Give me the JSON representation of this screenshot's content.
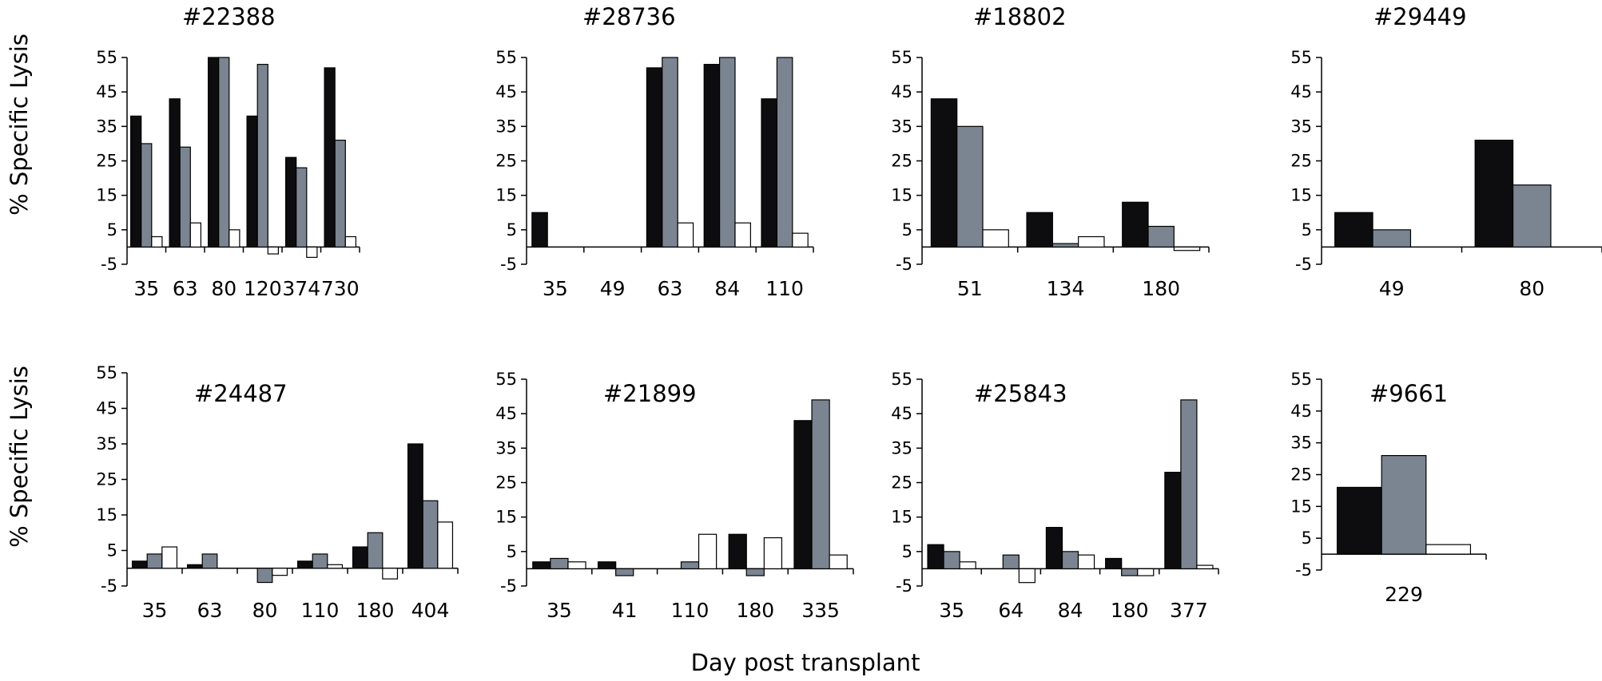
{
  "figure": {
    "y_axis_label": "% Specific Lysis",
    "x_axis_label": "Day post transplant"
  },
  "colors": {
    "series_1": "#0d0d0f",
    "series_2": "#7b8591",
    "series_3": "#ffffff",
    "series_3_stroke": "#000000"
  },
  "chart_data": [
    {
      "type": "bar",
      "title": "#22388",
      "categories": [
        "35",
        "63",
        "80",
        "120",
        "374",
        "730"
      ],
      "series": [
        {
          "values": [
            38,
            43,
            55,
            38,
            26,
            52
          ]
        },
        {
          "values": [
            30,
            29,
            55,
            53,
            23,
            31
          ]
        },
        {
          "values": [
            3,
            7,
            5,
            -2,
            -3,
            3
          ]
        }
      ],
      "yticks": [
        55,
        45,
        35,
        25,
        15,
        5,
        -5
      ],
      "ylim": [
        -5,
        55
      ]
    },
    {
      "type": "bar",
      "title": "#28736",
      "categories": [
        "35",
        "49",
        "63",
        "84",
        "110"
      ],
      "series": [
        {
          "values": [
            10,
            0,
            52,
            53,
            43
          ]
        },
        {
          "values": [
            0,
            0,
            55,
            55,
            55
          ]
        },
        {
          "values": [
            0,
            0,
            7,
            7,
            4
          ]
        }
      ],
      "yticks": [
        55,
        45,
        35,
        25,
        15,
        5,
        -5
      ],
      "ylim": [
        -5,
        55
      ]
    },
    {
      "type": "bar",
      "title": "#18802",
      "categories": [
        "51",
        "134",
        "180"
      ],
      "series": [
        {
          "values": [
            43,
            10,
            13
          ]
        },
        {
          "values": [
            35,
            1,
            6
          ]
        },
        {
          "values": [
            5,
            3,
            -1
          ]
        }
      ],
      "yticks": [
        55,
        45,
        35,
        25,
        15,
        5,
        -5
      ],
      "ylim": [
        -5,
        55
      ]
    },
    {
      "type": "bar",
      "title": "#29449",
      "categories": [
        "49",
        "80"
      ],
      "series": [
        {
          "values": [
            10,
            31
          ]
        },
        {
          "values": [
            5,
            18
          ]
        },
        {
          "values": [
            0,
            0
          ]
        }
      ],
      "yticks": [
        55,
        45,
        35,
        25,
        15,
        5,
        -5
      ],
      "ylim": [
        -5,
        55
      ]
    },
    {
      "type": "bar",
      "title": "#24487",
      "categories": [
        "35",
        "63",
        "80",
        "110",
        "180",
        "404"
      ],
      "series": [
        {
          "values": [
            2,
            1,
            0,
            2,
            6,
            35
          ]
        },
        {
          "values": [
            4,
            4,
            -4,
            4,
            10,
            19
          ]
        },
        {
          "values": [
            6,
            0,
            -2,
            1,
            -3,
            13
          ]
        }
      ],
      "yticks": [
        55,
        45,
        35,
        25,
        15,
        5,
        -5
      ],
      "ylim": [
        -5,
        55
      ]
    },
    {
      "type": "bar",
      "title": "#21899",
      "categories": [
        "35",
        "41",
        "110",
        "180",
        "335"
      ],
      "series": [
        {
          "values": [
            2,
            2,
            0,
            10,
            43
          ]
        },
        {
          "values": [
            3,
            -2,
            2,
            -2,
            49
          ]
        },
        {
          "values": [
            2,
            0,
            10,
            9,
            4
          ]
        }
      ],
      "yticks": [
        55,
        45,
        35,
        25,
        15,
        5,
        -5
      ],
      "ylim": [
        -5,
        55
      ]
    },
    {
      "type": "bar",
      "title": "#25843",
      "categories": [
        "35",
        "64",
        "84",
        "180",
        "377"
      ],
      "series": [
        {
          "values": [
            7,
            0,
            12,
            3,
            28
          ]
        },
        {
          "values": [
            5,
            4,
            5,
            -2,
            49
          ]
        },
        {
          "values": [
            2,
            -4,
            4,
            -2,
            1
          ]
        }
      ],
      "yticks": [
        55,
        45,
        35,
        25,
        15,
        5,
        -5
      ],
      "ylim": [
        -5,
        55
      ]
    },
    {
      "type": "bar",
      "title": "#9661",
      "categories": [
        "229"
      ],
      "series": [
        {
          "values": [
            21
          ]
        },
        {
          "values": [
            31
          ]
        },
        {
          "values": [
            3
          ]
        }
      ],
      "yticks": [
        55,
        45,
        35,
        25,
        15,
        5,
        -5
      ],
      "ylim": [
        -5,
        55
      ]
    }
  ]
}
